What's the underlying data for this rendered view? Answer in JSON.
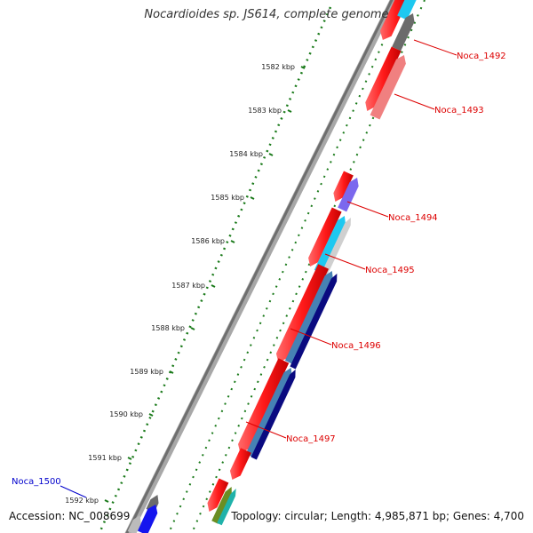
{
  "title": "Nocardioides sp. JS614, complete genome",
  "footer": {
    "accession": "Accession: NC_008699",
    "topology": "Topology: circular; Length: 4,985,871 bp; Genes: 4,700"
  },
  "ticks": [
    "1582 kbp",
    "1583 kbp",
    "1584 kbp",
    "1585 kbp",
    "1586 kbp",
    "1587 kbp",
    "1588 kbp",
    "1589 kbp",
    "1590 kbp",
    "1591 kbp",
    "1592 kbp"
  ],
  "genes": [
    "Noca_1492",
    "Noca_1493",
    "Noca_1494",
    "Noca_1495",
    "Noca_1496",
    "Noca_1497",
    "Noca_1500"
  ],
  "colors": {
    "forward": "#ff1a1a",
    "forward_light": "#f08080",
    "cyan": "#1ec8f0",
    "gray": "#6b6b6b",
    "slate": "#7b68ee",
    "steel": "#4682b4",
    "navy": "#0a0a80",
    "blue": "#1515ee",
    "olive": "#6b8e23",
    "teal": "#20b2aa",
    "label_red": "#dd0000",
    "label_blue": "#0000cc",
    "tick_green": "#1a7a1a"
  }
}
